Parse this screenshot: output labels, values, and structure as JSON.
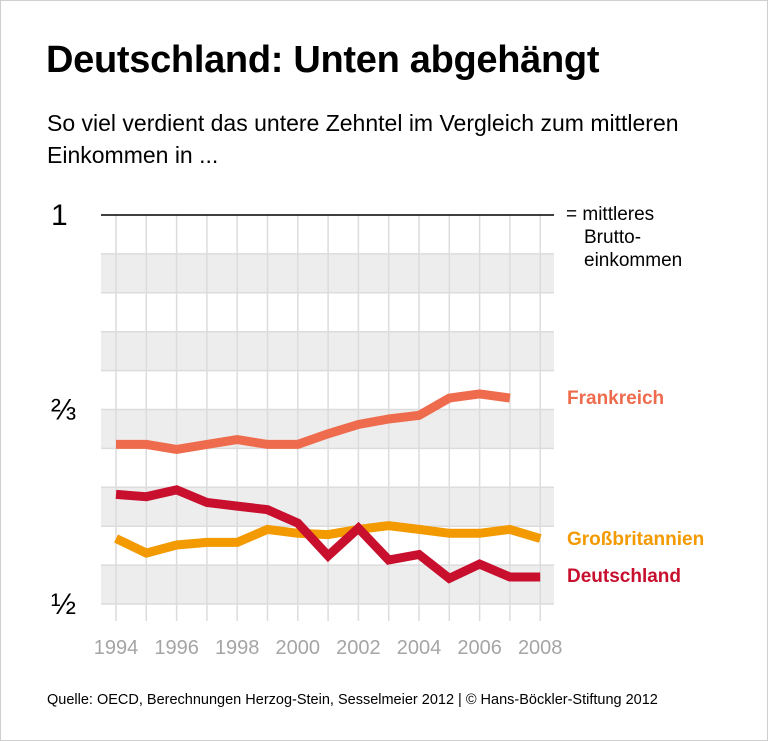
{
  "title": "Deutschland: Unten abgehängt",
  "subtitle": "So viel verdient das untere Zehntel im Vergleich zum mittleren Einkommen in ...",
  "footer": "Quelle: OECD, Berechnungen Herzog-Stein, Sesselmeier 2012 | © Hans-Böckler-Stiftung 2012",
  "chart_data": {
    "type": "line",
    "y_scale": "reciprocal",
    "ylim": [
      0.5,
      1
    ],
    "y_ticks": [
      {
        "value": 1,
        "label": "1"
      },
      {
        "value": 0.6667,
        "label": "⅔"
      },
      {
        "value": 0.5,
        "label": "½"
      }
    ],
    "reference_line": {
      "value": 1,
      "label_lines": [
        "= mittleres",
        "Brutto-",
        "einkommen"
      ]
    },
    "x": [
      1994,
      1995,
      1996,
      1997,
      1998,
      1999,
      2000,
      2001,
      2002,
      2003,
      2004,
      2005,
      2006,
      2007,
      2008
    ],
    "x_tick_labels": [
      "1994",
      "1996",
      "1998",
      "2000",
      "2002",
      "2004",
      "2006",
      "2008"
    ],
    "grid": true,
    "series": [
      {
        "name": "Frankreich",
        "color": "#ee6c4d",
        "values": [
          0.629,
          0.629,
          0.624,
          0.629,
          0.634,
          0.629,
          0.629,
          0.64,
          0.65,
          0.656,
          0.66,
          0.68,
          0.685,
          0.68,
          null
        ]
      },
      {
        "name": "Großbritannien",
        "color": "#f29a00",
        "values": [
          0.546,
          0.535,
          0.541,
          0.543,
          0.543,
          0.553,
          0.55,
          0.549,
          0.553,
          0.556,
          0.553,
          0.55,
          0.55,
          0.553,
          0.546
        ]
      },
      {
        "name": "Deutschland",
        "color": "#c8102e",
        "values": [
          0.582,
          0.58,
          0.586,
          0.575,
          0.572,
          0.569,
          0.558,
          0.533,
          0.554,
          0.53,
          0.534,
          0.517,
          0.527,
          0.518,
          0.518
        ]
      }
    ]
  }
}
